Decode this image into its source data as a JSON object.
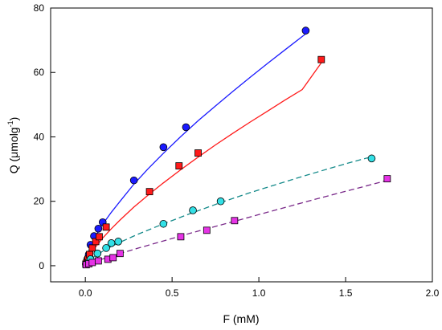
{
  "chart_data": {
    "type": "scatter",
    "xlabel": "F (mM)",
    "ylabel": "Q (μmolg",
    "ylabel_sup": "-1",
    "ylabel_close": ")",
    "xlim": [
      -0.2,
      2.0
    ],
    "ylim": [
      -5,
      80
    ],
    "x_ticks": [
      0.0,
      0.5,
      1.0,
      1.5,
      2.0
    ],
    "x_tick_labels": [
      "0.0",
      "0.5",
      "1.0",
      "1.5",
      "2.0"
    ],
    "y_ticks": [
      0,
      20,
      40,
      60,
      80
    ],
    "y_tick_labels": [
      "0",
      "20",
      "40",
      "60",
      "80"
    ],
    "grid": false,
    "legend": "none",
    "series": [
      {
        "marker": "circle",
        "color": "#1a1aff",
        "line_color": "#1a1aff",
        "line_style": "solid",
        "x": [
          0.003,
          0.008,
          0.013,
          0.02,
          0.03,
          0.05,
          0.075,
          0.1,
          0.28,
          0.45,
          0.58,
          1.27
        ],
        "y": [
          0.5,
          1.2,
          2.2,
          3.5,
          6.5,
          9.2,
          11.5,
          13.5,
          26.5,
          36.8,
          43,
          73
        ],
        "fit_x": [
          0.0,
          0.01,
          0.03,
          0.06,
          0.1,
          0.15,
          0.2,
          0.28,
          0.36,
          0.45,
          0.55,
          0.65,
          0.75,
          0.85,
          0.95,
          1.05,
          1.15,
          1.27
        ],
        "fit_y": [
          0,
          2.7,
          5.8,
          9.2,
          12.9,
          16.6,
          20.0,
          25.3,
          30.0,
          34.9,
          40.1,
          45.0,
          49.6,
          54.1,
          58.5,
          62.8,
          67.0,
          72.0
        ]
      },
      {
        "marker": "square",
        "color": "#ff1a1a",
        "line_color": "#ff1a1a",
        "line_style": "solid",
        "x": [
          0.003,
          0.008,
          0.015,
          0.025,
          0.04,
          0.06,
          0.08,
          0.12,
          0.37,
          0.54,
          0.65,
          1.36
        ],
        "y": [
          0.5,
          1.0,
          2.0,
          3.5,
          5.5,
          7.5,
          9.0,
          12.0,
          23.0,
          31.0,
          35.0,
          64.0
        ],
        "fit_x": [
          0.0,
          0.01,
          0.03,
          0.06,
          0.1,
          0.15,
          0.2,
          0.28,
          0.37,
          0.45,
          0.55,
          0.65,
          0.75,
          0.85,
          0.95,
          1.05,
          1.15,
          1.25,
          1.36
        ],
        "fit_y": [
          0,
          1.6,
          3.6,
          5.9,
          8.6,
          11.5,
          14.2,
          18.2,
          22.3,
          25.7,
          29.8,
          33.7,
          37.5,
          41.1,
          44.6,
          48.0,
          51.4,
          54.7,
          63.0
        ]
      },
      {
        "marker": "circle",
        "color": "#33e0e6",
        "line_color": "#148a8a",
        "line_style": "dashed",
        "x": [
          0.005,
          0.015,
          0.03,
          0.07,
          0.12,
          0.15,
          0.19,
          0.45,
          0.62,
          0.78,
          1.65
        ],
        "y": [
          0.5,
          1.0,
          2.0,
          3.8,
          5.5,
          7.0,
          7.5,
          13.0,
          17.2,
          20.0,
          33.3
        ],
        "fit_x": [
          0.0,
          0.02,
          0.05,
          0.1,
          0.15,
          0.2,
          0.3,
          0.45,
          0.6,
          0.78,
          0.95,
          1.1,
          1.25,
          1.4,
          1.55,
          1.65
        ],
        "fit_y": [
          0,
          1.4,
          2.8,
          4.5,
          6.0,
          7.3,
          9.7,
          13.0,
          16.1,
          19.6,
          22.7,
          25.2,
          27.7,
          30.1,
          32.4,
          33.8
        ]
      },
      {
        "marker": "square",
        "color": "#e633e6",
        "line_color": "#7a2a8a",
        "line_style": "dashed",
        "x": [
          0.005,
          0.02,
          0.04,
          0.075,
          0.13,
          0.16,
          0.2,
          0.55,
          0.7,
          0.86,
          1.74
        ],
        "y": [
          0.3,
          0.6,
          1.0,
          1.5,
          2.0,
          2.5,
          3.8,
          9.0,
          11.0,
          14.0,
          27.0
        ],
        "fit_x": [
          0.0,
          0.05,
          0.1,
          0.2,
          0.3,
          0.45,
          0.6,
          0.75,
          0.9,
          1.05,
          1.2,
          1.35,
          1.5,
          1.65,
          1.74
        ],
        "fit_y": [
          0,
          1.2,
          2.1,
          3.8,
          5.4,
          7.7,
          10.0,
          12.2,
          14.4,
          16.6,
          18.8,
          21.0,
          23.1,
          25.2,
          26.5
        ]
      }
    ]
  }
}
